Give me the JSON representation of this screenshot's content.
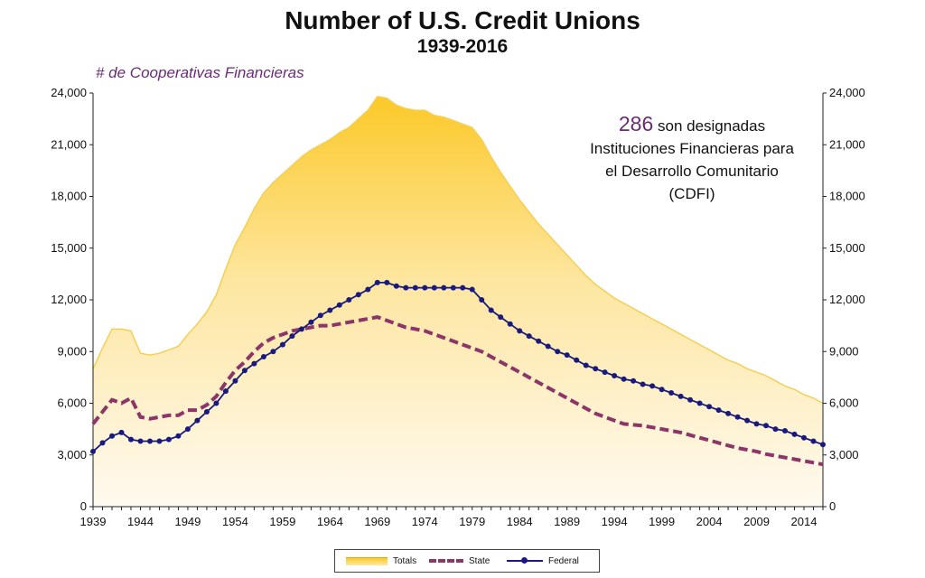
{
  "header": {
    "title": "Number of U.S. Credit Unions",
    "subtitle": "1939-2016",
    "axis_label": "# de Cooperativas Financieras"
  },
  "annotation": {
    "number": "286",
    "text_first": " son designadas",
    "text_rest": "Instituciones Financieras para el Desarrollo Comunitario (CDFI)"
  },
  "legend": {
    "totals": "Totals",
    "state": "State",
    "federal": "Federal"
  },
  "colors": {
    "totals_top": "#fcc928",
    "totals_bottom": "#fffaf0",
    "totals_line": "#f5cf55",
    "state": "#8b3568",
    "federal": "#1a1a7e",
    "annotation_number": "#6b2a78"
  },
  "chart_data": {
    "type": "area",
    "x_range": [
      1939,
      2016
    ],
    "ylim": [
      0,
      24000
    ],
    "y_ticks": [
      "0",
      "3,000",
      "6,000",
      "9,000",
      "12,000",
      "15,000",
      "18,000",
      "21,000",
      "24,000"
    ],
    "y_tick_values": [
      0,
      3000,
      6000,
      9000,
      12000,
      15000,
      18000,
      21000,
      24000
    ],
    "x_ticks": [
      "1939",
      "1944",
      "1949",
      "1954",
      "1959",
      "1964",
      "1969",
      "1974",
      "1979",
      "1984",
      "1989",
      "1994",
      "1999",
      "2004",
      "2009",
      "2014"
    ],
    "x_tick_values": [
      1939,
      1944,
      1949,
      1954,
      1959,
      1964,
      1969,
      1974,
      1979,
      1984,
      1989,
      1994,
      1999,
      2004,
      2009,
      2014
    ],
    "grid": false,
    "legend_position": "bottom",
    "secondary_y_axis": true,
    "series": [
      {
        "name": "Totals",
        "x": [
          1939,
          1940,
          1941,
          1942,
          1943,
          1944,
          1945,
          1946,
          1947,
          1948,
          1949,
          1950,
          1951,
          1952,
          1953,
          1954,
          1955,
          1956,
          1957,
          1958,
          1959,
          1960,
          1961,
          1962,
          1963,
          1964,
          1965,
          1966,
          1967,
          1968,
          1969,
          1970,
          1971,
          1972,
          1973,
          1974,
          1975,
          1976,
          1977,
          1978,
          1979,
          1980,
          1981,
          1982,
          1983,
          1984,
          1985,
          1986,
          1987,
          1988,
          1989,
          1990,
          1991,
          1992,
          1993,
          1994,
          1995,
          1996,
          1997,
          1998,
          1999,
          2000,
          2001,
          2002,
          2003,
          2004,
          2005,
          2006,
          2007,
          2008,
          2009,
          2010,
          2011,
          2012,
          2013,
          2014,
          2015,
          2016
        ],
        "values": [
          8000,
          9200,
          10300,
          10300,
          10200,
          8900,
          8800,
          8900,
          9100,
          9300,
          10000,
          10600,
          11300,
          12300,
          13800,
          15200,
          16200,
          17300,
          18200,
          18800,
          19300,
          19800,
          20300,
          20700,
          21000,
          21300,
          21700,
          22000,
          22500,
          23000,
          23800,
          23700,
          23300,
          23100,
          23000,
          23000,
          22700,
          22600,
          22400,
          22200,
          22000,
          21300,
          20300,
          19400,
          18600,
          17800,
          17100,
          16400,
          15800,
          15200,
          14600,
          14000,
          13400,
          12900,
          12500,
          12100,
          11800,
          11500,
          11200,
          10900,
          10600,
          10300,
          10000,
          9700,
          9400,
          9100,
          8800,
          8500,
          8300,
          8000,
          7800,
          7600,
          7300,
          7000,
          6800,
          6500,
          6300,
          6000
        ]
      },
      {
        "name": "State",
        "x": [
          1939,
          1940,
          1941,
          1942,
          1943,
          1944,
          1945,
          1946,
          1947,
          1948,
          1949,
          1950,
          1951,
          1952,
          1953,
          1954,
          1955,
          1956,
          1957,
          1958,
          1959,
          1960,
          1961,
          1962,
          1963,
          1964,
          1965,
          1966,
          1967,
          1968,
          1969,
          1970,
          1971,
          1972,
          1973,
          1974,
          1975,
          1976,
          1977,
          1978,
          1979,
          1980,
          1981,
          1982,
          1983,
          1984,
          1985,
          1986,
          1987,
          1988,
          1989,
          1990,
          1991,
          1992,
          1993,
          1994,
          1995,
          1996,
          1997,
          1998,
          1999,
          2000,
          2001,
          2002,
          2003,
          2004,
          2005,
          2006,
          2007,
          2008,
          2009,
          2010,
          2011,
          2012,
          2013,
          2014,
          2015,
          2016
        ],
        "values": [
          4800,
          5500,
          6200,
          6000,
          6300,
          5200,
          5100,
          5200,
          5300,
          5300,
          5600,
          5600,
          5900,
          6400,
          7200,
          7900,
          8400,
          9000,
          9500,
          9800,
          10000,
          10200,
          10300,
          10400,
          10500,
          10500,
          10600,
          10700,
          10800,
          10900,
          11000,
          10800,
          10600,
          10400,
          10300,
          10200,
          10000,
          9800,
          9600,
          9400,
          9200,
          9000,
          8700,
          8400,
          8100,
          7800,
          7500,
          7200,
          6900,
          6600,
          6300,
          6000,
          5700,
          5400,
          5200,
          5000,
          4800,
          4750,
          4700,
          4600,
          4500,
          4400,
          4300,
          4150,
          4000,
          3850,
          3700,
          3550,
          3400,
          3300,
          3200,
          3050,
          2950,
          2850,
          2750,
          2650,
          2550,
          2450
        ]
      },
      {
        "name": "Federal",
        "x": [
          1939,
          1940,
          1941,
          1942,
          1943,
          1944,
          1945,
          1946,
          1947,
          1948,
          1949,
          1950,
          1951,
          1952,
          1953,
          1954,
          1955,
          1956,
          1957,
          1958,
          1959,
          1960,
          1961,
          1962,
          1963,
          1964,
          1965,
          1966,
          1967,
          1968,
          1969,
          1970,
          1971,
          1972,
          1973,
          1974,
          1975,
          1976,
          1977,
          1978,
          1979,
          1980,
          1981,
          1982,
          1983,
          1984,
          1985,
          1986,
          1987,
          1988,
          1989,
          1990,
          1991,
          1992,
          1993,
          1994,
          1995,
          1996,
          1997,
          1998,
          1999,
          2000,
          2001,
          2002,
          2003,
          2004,
          2005,
          2006,
          2007,
          2008,
          2009,
          2010,
          2011,
          2012,
          2013,
          2014,
          2015,
          2016
        ],
        "values": [
          3200,
          3700,
          4100,
          4300,
          3900,
          3800,
          3800,
          3800,
          3900,
          4100,
          4500,
          5000,
          5500,
          6000,
          6700,
          7300,
          7900,
          8300,
          8700,
          9000,
          9400,
          9900,
          10300,
          10700,
          11100,
          11400,
          11700,
          12000,
          12300,
          12600,
          13000,
          13000,
          12800,
          12700,
          12700,
          12700,
          12700,
          12700,
          12700,
          12700,
          12600,
          12000,
          11400,
          11000,
          10600,
          10200,
          9900,
          9600,
          9300,
          9000,
          8800,
          8500,
          8200,
          8000,
          7800,
          7600,
          7400,
          7300,
          7100,
          7000,
          6800,
          6600,
          6400,
          6200,
          6000,
          5800,
          5600,
          5400,
          5200,
          5000,
          4800,
          4700,
          4500,
          4400,
          4200,
          4000,
          3800,
          3600
        ]
      }
    ]
  }
}
